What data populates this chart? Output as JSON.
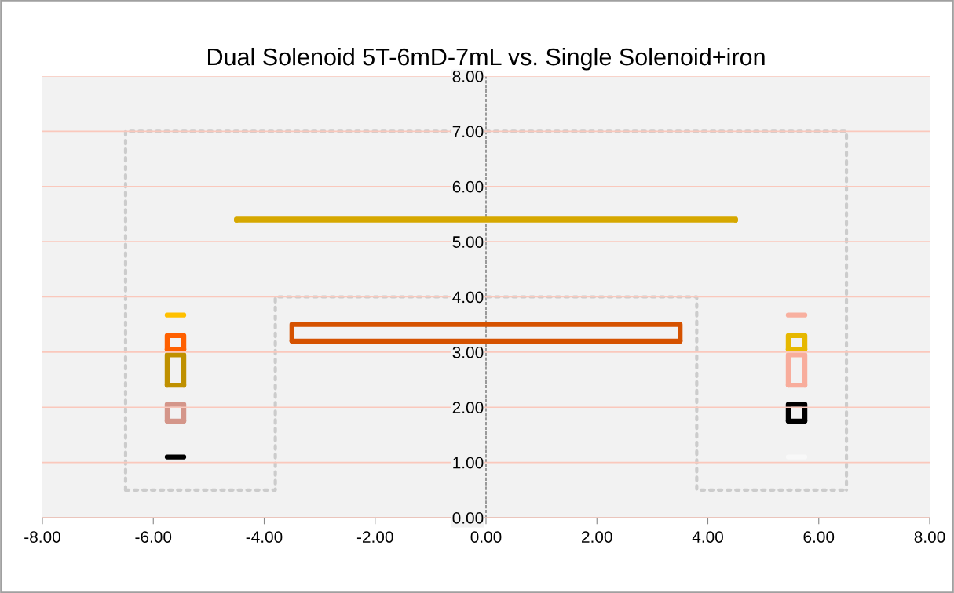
{
  "chart_data": {
    "type": "line",
    "title": "Dual Solenoid 5T-6mD-7mL vs. Single Solenoid+iron",
    "xlim": [
      -8,
      8
    ],
    "ylim": [
      0,
      8
    ],
    "xticks": [
      {
        "value": -8,
        "label": "-8.00"
      },
      {
        "value": -6,
        "label": "-6.00"
      },
      {
        "value": -4,
        "label": "-4.00"
      },
      {
        "value": -2,
        "label": "-2.00"
      },
      {
        "value": 0,
        "label": "0.00"
      },
      {
        "value": 2,
        "label": "2.00"
      },
      {
        "value": 4,
        "label": "4.00"
      },
      {
        "value": 6,
        "label": "6.00"
      },
      {
        "value": 8,
        "label": "8.00"
      }
    ],
    "yticks": [
      {
        "value": 0,
        "label": "0.00"
      },
      {
        "value": 1,
        "label": "1.00"
      },
      {
        "value": 2,
        "label": "2.00"
      },
      {
        "value": 3,
        "label": "3.00"
      },
      {
        "value": 4,
        "label": "4.00"
      },
      {
        "value": 5,
        "label": "5.00"
      },
      {
        "value": 6,
        "label": "6.00"
      },
      {
        "value": 7,
        "label": "7.00"
      },
      {
        "value": 8,
        "label": "8.00"
      }
    ],
    "grid": "y",
    "marker": "none",
    "line_style": "solid",
    "ref_lines": [
      {
        "axis": "x",
        "value": 0,
        "color": "#555555",
        "line_style": "dashed"
      }
    ],
    "series": [
      {
        "color": "#cccccc",
        "line_style": "dotted",
        "x": [
          -6.5,
          -6.5,
          6.5,
          6.5
        ],
        "values": [
          0.5,
          7.0,
          7.0,
          0.5
        ]
      },
      {
        "color": "#cccccc",
        "line_style": "dotted",
        "x": [
          -6.5,
          -3.8,
          -3.8,
          3.8,
          3.8,
          6.5
        ],
        "values": [
          0.5,
          0.5,
          4.0,
          4.0,
          0.5,
          0.5
        ]
      },
      {
        "color": "#d6a800",
        "x": [
          -4.5,
          -4.5,
          4.5,
          4.5
        ],
        "values": [
          5.39,
          5.41,
          5.41,
          5.39
        ]
      },
      {
        "color": "#d6a800",
        "x": [
          -4.5,
          4.5
        ],
        "values": [
          5.39,
          5.39
        ]
      },
      {
        "color": "#d55200",
        "x": [
          -3.5,
          -3.5,
          3.5,
          3.5
        ],
        "values": [
          3.2,
          3.5,
          3.5,
          3.2
        ]
      },
      {
        "color": "#d55200",
        "x": [
          -3.5,
          3.5
        ],
        "values": [
          3.2,
          3.2
        ]
      },
      {
        "color": "#ffc000",
        "x": [
          -5.75,
          -5.45
        ],
        "values": [
          3.67,
          3.67
        ]
      },
      {
        "color": "#ff6000",
        "x": [
          -5.75,
          -5.75,
          -5.45,
          -5.45
        ],
        "values": [
          3.05,
          3.3,
          3.3,
          3.05
        ]
      },
      {
        "color": "#ff6000",
        "x": [
          -5.75,
          -5.45
        ],
        "values": [
          3.05,
          3.05
        ]
      },
      {
        "color": "#bf9000",
        "x": [
          -5.75,
          -5.75,
          -5.45,
          -5.45
        ],
        "values": [
          2.4,
          2.95,
          2.95,
          2.4
        ]
      },
      {
        "color": "#bf9000",
        "x": [
          -5.75,
          -5.45
        ],
        "values": [
          2.4,
          2.4
        ]
      },
      {
        "color": "#d4968a",
        "x": [
          -5.75,
          -5.75,
          -5.45,
          -5.45
        ],
        "values": [
          1.75,
          2.05,
          2.05,
          1.75
        ]
      },
      {
        "color": "#d4968a",
        "x": [
          -5.75,
          -5.45
        ],
        "values": [
          1.75,
          1.75
        ]
      },
      {
        "color": "#000000",
        "x": [
          -5.75,
          -5.45
        ],
        "values": [
          1.1,
          1.1
        ]
      },
      {
        "color": "#f8b0a0",
        "x": [
          5.45,
          5.75
        ],
        "values": [
          3.67,
          3.67
        ]
      },
      {
        "color": "#e6b800",
        "x": [
          5.45,
          5.45,
          5.75,
          5.75
        ],
        "values": [
          3.05,
          3.3,
          3.3,
          3.05
        ]
      },
      {
        "color": "#e6b800",
        "x": [
          5.45,
          5.75
        ],
        "values": [
          3.05,
          3.05
        ]
      },
      {
        "color": "#f8ad9c",
        "x": [
          5.45,
          5.45,
          5.75,
          5.75
        ],
        "values": [
          2.4,
          2.95,
          2.95,
          2.4
        ]
      },
      {
        "color": "#f8ad9c",
        "x": [
          5.45,
          5.75
        ],
        "values": [
          2.4,
          2.4
        ]
      },
      {
        "color": "#000000",
        "x": [
          5.45,
          5.45,
          5.75,
          5.75
        ],
        "values": [
          1.75,
          2.05,
          2.05,
          1.75
        ]
      },
      {
        "color": "#000000",
        "x": [
          5.45,
          5.75
        ],
        "values": [
          1.75,
          1.75
        ]
      },
      {
        "color": "#f8f8f8",
        "x": [
          5.45,
          5.75
        ],
        "values": [
          1.1,
          1.1
        ]
      }
    ]
  }
}
